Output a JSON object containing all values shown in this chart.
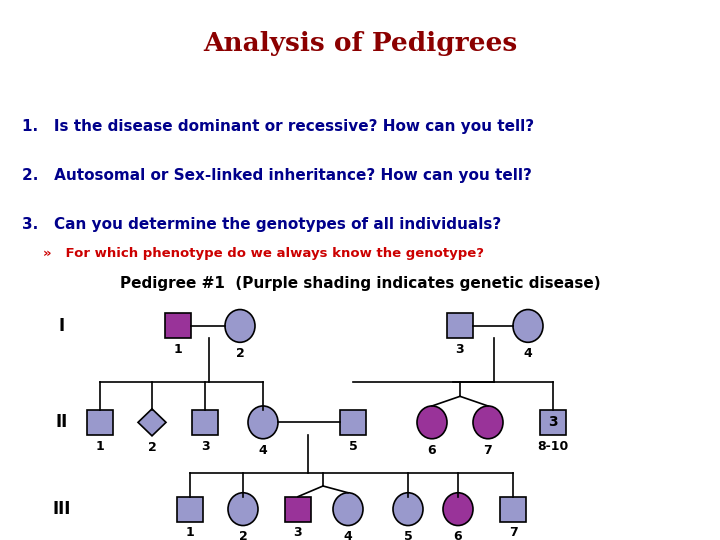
{
  "title": "Analysis of Pedigrees",
  "title_color": "#8B0000",
  "title_bg": "#FFFF99",
  "header_bg": "#AADDCC",
  "questions": [
    "Is the disease dominant or recessive? How can you tell?",
    "Autosomal or Sex-linked inheritance? How can you tell?",
    "Can you determine the genotypes of all individuals?"
  ],
  "question_color": "#00008B",
  "subquestion": "For which phenotype do we always know the genotype?",
  "subquestion_color": "#CC0000",
  "pedigree_title": "Pedigree #1  (Purple shading indicates genetic disease)",
  "pedigree_title_color": "#000000",
  "normal_fill": "#9999CC",
  "affected_fill": "#993399",
  "bg_color": "#FFFFFF",
  "roman_color": "#000000"
}
